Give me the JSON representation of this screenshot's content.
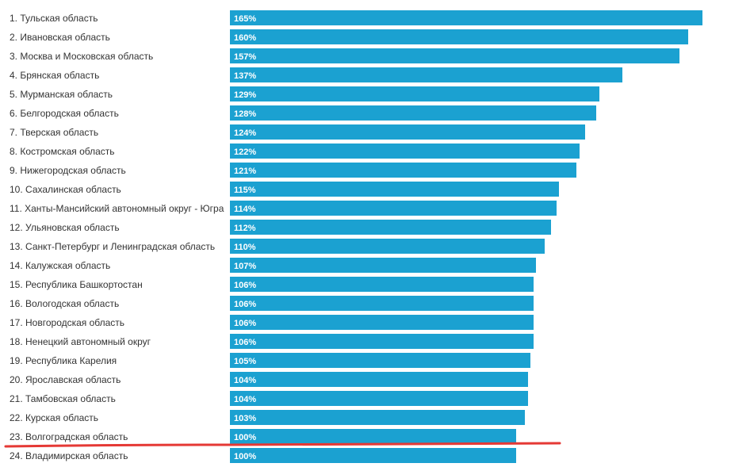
{
  "chart_data": {
    "type": "bar",
    "orientation": "horizontal",
    "categories": [
      "1. Тульская область",
      "2. Ивановская область",
      "3. Москва и Московская область",
      "4. Брянская область",
      "5. Мурманская область",
      "6. Белгородская область",
      "7. Тверская область",
      "8. Костромская область",
      "9. Нижегородская область",
      "10. Сахалинская область",
      "11. Ханты-Мансийский автономный округ - Югра",
      "12. Ульяновская область",
      "13. Санкт-Петербург и Ленинградская область",
      "14. Калужская область",
      "15. Республика Башкортостан",
      "16. Вологодская область",
      "17. Новгородская область",
      "18. Ненецкий автономный округ",
      "19. Республика Карелия",
      "20. Ярославская область",
      "21. Тамбовская область",
      "22. Курская область",
      "23. Волгоградская область",
      "24. Владимирская область"
    ],
    "values": [
      165,
      160,
      157,
      137,
      129,
      128,
      124,
      122,
      121,
      115,
      114,
      112,
      110,
      107,
      106,
      106,
      106,
      106,
      105,
      104,
      104,
      103,
      100,
      100
    ],
    "data_labels": [
      "165%",
      "160%",
      "157%",
      "137%",
      "129%",
      "128%",
      "124%",
      "122%",
      "121%",
      "115%",
      "114%",
      "112%",
      "110%",
      "107%",
      "106%",
      "106%",
      "106%",
      "106%",
      "105%",
      "104%",
      "104%",
      "103%",
      "100%",
      "100%"
    ],
    "bar_color": "#1ba1d1",
    "highlight_color": "#e53935",
    "highlighted_category": "23. Волгоградская область",
    "grid": false,
    "legend": "none"
  }
}
